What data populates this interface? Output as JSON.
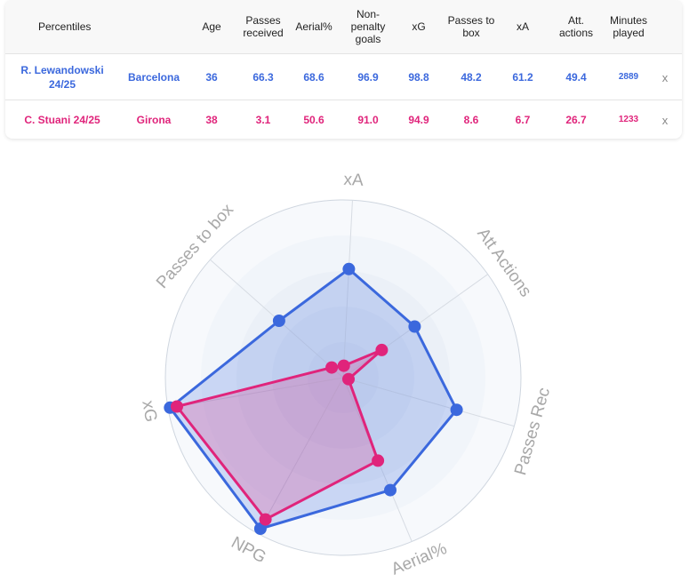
{
  "table": {
    "headers": [
      "Percentiles",
      "",
      "Age",
      "Passes received",
      "Aerial%",
      "Non-penalty goals",
      "xG",
      "Passes to box",
      "xA",
      "Att. actions",
      "Minutes played"
    ],
    "rows": [
      {
        "player": "R. Lewandowski 24/25",
        "team": "Barcelona",
        "values": [
          "36",
          "66.3",
          "68.6",
          "96.9",
          "98.8",
          "48.2",
          "61.2",
          "49.4",
          "2889"
        ],
        "remove": "x"
      },
      {
        "player": "C. Stuani 24/25",
        "team": "Girona",
        "values": [
          "38",
          "3.1",
          "50.6",
          "91.0",
          "94.9",
          "8.6",
          "6.7",
          "26.7",
          "1233"
        ],
        "remove": "x"
      }
    ]
  },
  "colors": {
    "series1": "#3b68dd",
    "series2": "#e0247b"
  },
  "chart_data": {
    "type": "radar",
    "axes": [
      "xA",
      "Att Actions",
      "Passes Rec",
      "Aerial%",
      "NPG",
      "xG",
      "Passes to box"
    ],
    "range": [
      0,
      100
    ],
    "series": [
      {
        "values": [
          61.2,
          49.4,
          66.3,
          68.6,
          96.9,
          98.8,
          48.2
        ]
      },
      {
        "values": [
          6.7,
          26.7,
          3.1,
          50.6,
          91.0,
          94.9,
          8.6
        ]
      }
    ]
  }
}
